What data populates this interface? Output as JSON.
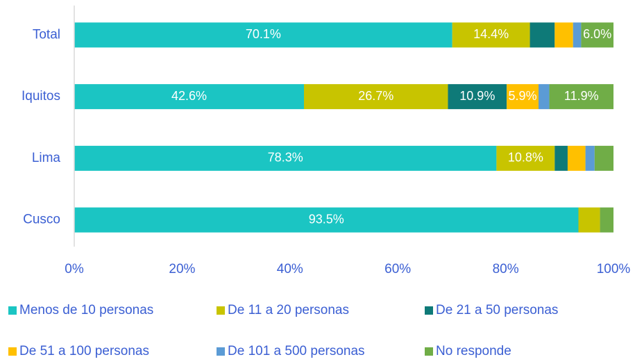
{
  "chart_data": {
    "type": "stacked-barh",
    "categories": [
      "Total",
      "Iquitos",
      "Lima",
      "Cusco"
    ],
    "series": [
      {
        "name": "Menos de 10 personas",
        "color": "#1bc5c3",
        "values": [
          70.1,
          42.6,
          78.3,
          93.5
        ],
        "value_labels": [
          "70.1%",
          "42.6%",
          "78.3%",
          "93.5%"
        ]
      },
      {
        "name": "De 11 a 20 personas",
        "color": "#c8c400",
        "values": [
          14.4,
          26.7,
          10.8,
          4.0
        ],
        "value_labels": [
          "14.4%",
          "26.7%",
          "10.8%",
          null
        ]
      },
      {
        "name": "De 21 a 50 personas",
        "color": "#0e7a78",
        "values": [
          4.6,
          10.9,
          2.4,
          0
        ],
        "value_labels": [
          null,
          "10.9%",
          null,
          null
        ]
      },
      {
        "name": "De 51 a 100 personas",
        "color": "#ffc000",
        "values": [
          3.4,
          5.9,
          3.3,
          0
        ],
        "value_labels": [
          null,
          "5.9%",
          null,
          null
        ]
      },
      {
        "name": "De 101 a 500 personas",
        "color": "#5b9bd5",
        "values": [
          1.5,
          2.0,
          1.7,
          0
        ],
        "value_labels": [
          null,
          null,
          null,
          null
        ]
      },
      {
        "name": "No responde",
        "color": "#70ad47",
        "values": [
          6.0,
          11.9,
          3.5,
          2.5
        ],
        "value_labels": [
          "6.0%",
          "11.9%",
          null,
          null
        ]
      }
    ],
    "xlim": [
      0,
      100
    ],
    "xticks": [
      {
        "value": 0,
        "label": "0%"
      },
      {
        "value": 20,
        "label": "20%"
      },
      {
        "value": 40,
        "label": "40%"
      },
      {
        "value": 60,
        "label": "60%"
      },
      {
        "value": 80,
        "label": "80%"
      },
      {
        "value": 100,
        "label": "100%"
      }
    ],
    "legend": "bottom"
  }
}
